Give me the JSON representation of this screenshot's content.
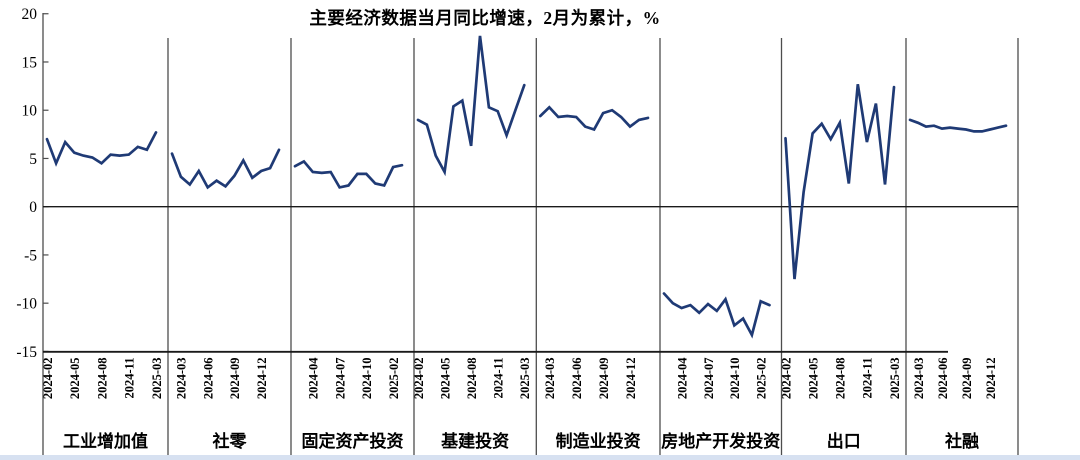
{
  "chart_data": {
    "type": "line",
    "title": "主要经济数据当月同比增速，2月为累计，%",
    "ylim": [
      -15,
      20
    ],
    "yticks": [
      20,
      15,
      10,
      5,
      0,
      -5,
      -10,
      -15
    ],
    "grid": false,
    "legend": "none",
    "months": [
      "2024-02",
      "2024-03",
      "2024-04",
      "2024-05",
      "2024-06",
      "2024-07",
      "2024-08",
      "2024-09",
      "2024-10",
      "2024-11",
      "2024-12",
      "2025-02",
      "2025-03"
    ],
    "colors": {
      "line": "#1f3a75",
      "axis": "#1a1a1a",
      "divider": "#4d4d4d",
      "text": "#000000"
    },
    "panels": [
      {
        "name": "工业增加值",
        "label_indices": [
          0,
          3,
          6,
          9,
          12
        ],
        "values": [
          7.0,
          4.5,
          6.7,
          5.6,
          5.3,
          5.1,
          4.5,
          5.4,
          5.3,
          5.4,
          6.2,
          5.9,
          7.7
        ]
      },
      {
        "name": "社零",
        "label_indices": [
          1,
          4,
          7,
          10
        ],
        "values": [
          5.5,
          3.1,
          2.3,
          3.7,
          2.0,
          2.7,
          2.1,
          3.2,
          4.8,
          3.0,
          3.7,
          4.0,
          5.9
        ]
      },
      {
        "name": "固定资产投资",
        "label_indices": [
          2,
          5,
          8,
          11
        ],
        "values": [
          4.2,
          4.7,
          3.6,
          3.5,
          3.6,
          2.0,
          2.2,
          3.4,
          3.4,
          2.4,
          2.2,
          4.1,
          4.3
        ]
      },
      {
        "name": "基建投资",
        "label_indices": [
          0,
          3,
          6,
          9,
          12
        ],
        "values": [
          9.0,
          8.5,
          5.3,
          3.6,
          10.4,
          11.0,
          6.3,
          17.7,
          10.3,
          9.9,
          7.4,
          10.0,
          12.6
        ]
      },
      {
        "name": "制造业投资",
        "label_indices": [
          1,
          4,
          7,
          10
        ],
        "values": [
          9.4,
          10.3,
          9.3,
          9.4,
          9.3,
          8.3,
          8.0,
          9.7,
          10.0,
          9.3,
          8.3,
          9.0,
          9.2
        ]
      },
      {
        "name": "房地产开发投资",
        "label_indices": [
          2,
          5,
          8,
          11
        ],
        "values": [
          -9.0,
          -10.0,
          -10.5,
          -10.2,
          -11.0,
          -10.1,
          -10.8,
          -9.6,
          -12.3,
          -11.6,
          -13.3,
          -9.8,
          -10.2
        ]
      },
      {
        "name": "出口",
        "label_indices": [
          0,
          3,
          6,
          9,
          12
        ],
        "values": [
          7.1,
          -7.5,
          1.5,
          7.6,
          8.6,
          7.0,
          8.7,
          2.4,
          12.7,
          6.7,
          10.7,
          2.3,
          12.4
        ]
      },
      {
        "name": "社融",
        "label_indices": [
          1,
          4,
          7,
          10
        ],
        "values": [
          9.0,
          8.7,
          8.3,
          8.4,
          8.1,
          8.2,
          8.1,
          8.0,
          7.8,
          7.8,
          8.0,
          8.2,
          8.4
        ]
      }
    ]
  }
}
